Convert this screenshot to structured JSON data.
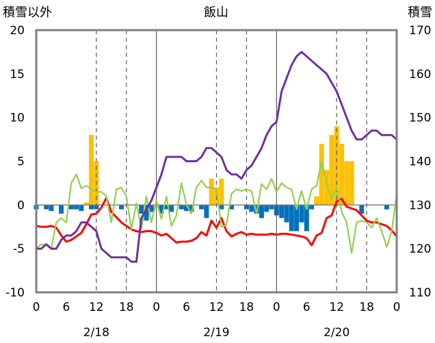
{
  "chart_data": {
    "type": "bar+line",
    "title": "飯山",
    "left_axis_label": "積雪以外",
    "right_axis_label": "積雪",
    "left_ylim": [
      -10,
      20
    ],
    "left_ticks": [
      "20",
      "15",
      "10",
      "5",
      "0",
      "-5",
      "-10"
    ],
    "right_ylim": [
      110,
      170
    ],
    "right_ticks": [
      "170",
      "160",
      "150",
      "140",
      "130",
      "120",
      "110"
    ],
    "x_tick_labels": [
      "0",
      "6",
      "12",
      "18",
      "0",
      "6",
      "12",
      "18",
      "0",
      "6",
      "12",
      "18",
      "0"
    ],
    "date_labels": [
      "2/18",
      "2/19",
      "2/20"
    ],
    "x_range_hours": [
      0,
      72
    ],
    "colors": {
      "snowfall_bar": "#ffc000",
      "snow_change_negative_bar": "#0070c0",
      "red_line": "#ff0000",
      "green_line": "#92d050",
      "snow_depth_line": "#7030a0",
      "frame": "#7f7f7f",
      "dashed_grid": "#595959",
      "zero_line": "#7f7f7f"
    },
    "series": [
      {
        "kind": "bar_positive",
        "axis": "left",
        "values": [
          [
            10,
            0.3
          ],
          [
            11,
            8
          ],
          [
            12,
            5
          ],
          [
            35,
            3
          ],
          [
            36,
            2
          ],
          [
            37,
            3
          ],
          [
            56,
            1
          ],
          [
            57,
            7
          ],
          [
            58,
            4
          ],
          [
            59,
            8
          ],
          [
            60,
            9
          ],
          [
            61,
            7
          ],
          [
            62,
            5
          ],
          [
            63,
            5
          ]
        ]
      },
      {
        "kind": "bar_negative",
        "axis": "left",
        "values": [
          [
            0,
            -0.5
          ],
          [
            2,
            -0.5
          ],
          [
            3,
            -0.7
          ],
          [
            5,
            -1
          ],
          [
            7,
            -0.5
          ],
          [
            8,
            -0.5
          ],
          [
            9,
            -0.7
          ],
          [
            11,
            -0.5
          ],
          [
            12,
            -0.5
          ],
          [
            17,
            -0.5
          ],
          [
            21,
            -1
          ],
          [
            22,
            -1.8
          ],
          [
            23,
            -0.8
          ],
          [
            25,
            -1
          ],
          [
            26,
            -0.5
          ],
          [
            27,
            -0.8
          ],
          [
            29,
            -0.5
          ],
          [
            30,
            -0.7
          ],
          [
            31,
            -0.8
          ],
          [
            33,
            -0.5
          ],
          [
            34,
            -1.5
          ],
          [
            37,
            -0.5
          ],
          [
            39,
            -0.5
          ],
          [
            42,
            -0.5
          ],
          [
            43,
            -0.8
          ],
          [
            44,
            -1
          ],
          [
            45,
            -1.5
          ],
          [
            46,
            -0.8
          ],
          [
            47,
            -0.5
          ],
          [
            48,
            -1.2
          ],
          [
            49,
            -1.5
          ],
          [
            50,
            -2
          ],
          [
            51,
            -3
          ],
          [
            52,
            -3
          ],
          [
            53,
            -2
          ],
          [
            54,
            -3
          ],
          [
            55,
            -0.5
          ],
          [
            65,
            -1
          ],
          [
            70,
            -0.5
          ]
        ]
      },
      {
        "kind": "line",
        "name": "",
        "axis": "left",
        "color_key": "red_line",
        "points": [
          [
            0,
            -2.4
          ],
          [
            1,
            -2.5
          ],
          [
            2,
            -2.5
          ],
          [
            3,
            -2.4
          ],
          [
            4,
            -2.6
          ],
          [
            5,
            -3.5
          ],
          [
            6,
            -4.2
          ],
          [
            7,
            -4
          ],
          [
            8,
            -3.6
          ],
          [
            9,
            -3.2
          ],
          [
            10,
            -2.2
          ],
          [
            11,
            -1.1
          ],
          [
            12,
            -1
          ],
          [
            13,
            -0.3
          ],
          [
            14,
            0.8
          ],
          [
            15,
            -0.8
          ],
          [
            16,
            -1.4
          ],
          [
            17,
            -2
          ],
          [
            18,
            -2.4
          ],
          [
            19,
            -2.8
          ],
          [
            20,
            -3
          ],
          [
            21,
            -3.1
          ],
          [
            22,
            -3
          ],
          [
            23,
            -3
          ],
          [
            24,
            -3.2
          ],
          [
            25,
            -3.5
          ],
          [
            26,
            -3.3
          ],
          [
            27,
            -3.8
          ],
          [
            28,
            -4.3
          ],
          [
            29,
            -4.2
          ],
          [
            30,
            -4.2
          ],
          [
            31,
            -4.1
          ],
          [
            32,
            -3.8
          ],
          [
            33,
            -3.1
          ],
          [
            34,
            -3.5
          ],
          [
            35,
            -1.8
          ],
          [
            36,
            -2.6
          ],
          [
            37,
            -1.5
          ],
          [
            38,
            -3
          ],
          [
            39,
            -3.6
          ],
          [
            40,
            -3.3
          ],
          [
            41,
            -3.1
          ],
          [
            42,
            -3.4
          ],
          [
            43,
            -3.3
          ],
          [
            44,
            -3.4
          ],
          [
            45,
            -3.4
          ],
          [
            46,
            -3.4
          ],
          [
            47,
            -3.3
          ],
          [
            48,
            -3.4
          ],
          [
            49,
            -3.3
          ],
          [
            50,
            -3.3
          ],
          [
            51,
            -3.4
          ],
          [
            52,
            -3.5
          ],
          [
            53,
            -3.6
          ],
          [
            54,
            -3.8
          ],
          [
            55,
            -4.6
          ],
          [
            56,
            -3.5
          ],
          [
            57,
            -3.2
          ],
          [
            58,
            -1.5
          ],
          [
            59,
            -1.2
          ],
          [
            60,
            0.4
          ],
          [
            61,
            0.7
          ],
          [
            62,
            -0.2
          ],
          [
            63,
            -0.4
          ],
          [
            64,
            -0.6
          ],
          [
            65,
            -1.2
          ],
          [
            66,
            -1.8
          ],
          [
            67,
            -2
          ],
          [
            68,
            -2
          ],
          [
            69,
            -2.2
          ],
          [
            70,
            -2.4
          ],
          [
            71,
            -2.9
          ],
          [
            72,
            -3.6
          ]
        ]
      },
      {
        "kind": "line",
        "name": "",
        "axis": "left",
        "color_key": "green_line",
        "points": [
          [
            0,
            -5
          ],
          [
            1,
            -4.5
          ],
          [
            2,
            -4.6
          ],
          [
            3,
            -5
          ],
          [
            4,
            -2
          ],
          [
            5,
            -1.5
          ],
          [
            6,
            -2
          ],
          [
            7,
            2.5
          ],
          [
            8,
            3.5
          ],
          [
            9,
            1.9
          ],
          [
            10,
            2.2
          ],
          [
            11,
            1.8
          ],
          [
            12,
            1.5
          ],
          [
            13,
            1.5
          ],
          [
            14,
            1
          ],
          [
            15,
            -2
          ],
          [
            16,
            1.8
          ],
          [
            17,
            2
          ],
          [
            18,
            1
          ],
          [
            19,
            -2.8
          ],
          [
            20,
            0.2
          ],
          [
            21,
            -2.8
          ],
          [
            22,
            1
          ],
          [
            23,
            -2
          ],
          [
            24,
            0.5
          ],
          [
            25,
            -1.6
          ],
          [
            26,
            1
          ],
          [
            27,
            -2.4
          ],
          [
            28,
            -1.2
          ],
          [
            29,
            2.5
          ],
          [
            30,
            0
          ],
          [
            31,
            -1
          ],
          [
            32,
            2
          ],
          [
            33,
            2.8
          ],
          [
            34,
            2
          ],
          [
            35,
            2
          ],
          [
            36,
            1.8
          ],
          [
            37,
            -2.5
          ],
          [
            38,
            -2.3
          ],
          [
            39,
            1.3
          ],
          [
            40,
            1.8
          ],
          [
            41,
            1.6
          ],
          [
            42,
            1.8
          ],
          [
            43,
            1.6
          ],
          [
            44,
            -1
          ],
          [
            45,
            2.4
          ],
          [
            46,
            1.8
          ],
          [
            47,
            3
          ],
          [
            48,
            1.5
          ],
          [
            49,
            2.5
          ],
          [
            50,
            2
          ],
          [
            51,
            1.8
          ],
          [
            52,
            -0.5
          ],
          [
            53,
            1.6
          ],
          [
            54,
            -0.5
          ],
          [
            55,
            1.8
          ],
          [
            56,
            2.2
          ],
          [
            57,
            5
          ],
          [
            58,
            2.5
          ],
          [
            59,
            0.6
          ],
          [
            60,
            2
          ],
          [
            61,
            -0.8
          ],
          [
            62,
            -2
          ],
          [
            63,
            -5.5
          ],
          [
            64,
            -2
          ],
          [
            65,
            -1.8
          ],
          [
            66,
            -2
          ],
          [
            67,
            -2.6
          ],
          [
            68,
            -1.5
          ],
          [
            69,
            -3
          ],
          [
            70,
            -4.8
          ],
          [
            71,
            -3
          ],
          [
            72,
            1.2
          ]
        ]
      },
      {
        "kind": "line",
        "name": "",
        "axis": "right",
        "color_key": "snow_depth_line",
        "points": [
          [
            0,
            120
          ],
          [
            1,
            120
          ],
          [
            2,
            121
          ],
          [
            3,
            120
          ],
          [
            4,
            120
          ],
          [
            5,
            122
          ],
          [
            6,
            123
          ],
          [
            7,
            123
          ],
          [
            8,
            124
          ],
          [
            9,
            126
          ],
          [
            10,
            126
          ],
          [
            11,
            125
          ],
          [
            12,
            124
          ],
          [
            13,
            120
          ],
          [
            14,
            119
          ],
          [
            15,
            118
          ],
          [
            16,
            118
          ],
          [
            17,
            118
          ],
          [
            18,
            118
          ],
          [
            19,
            117
          ],
          [
            20,
            117
          ],
          [
            21,
            127
          ],
          [
            22,
            129
          ],
          [
            23,
            131
          ],
          [
            24,
            134
          ],
          [
            25,
            137
          ],
          [
            26,
            141
          ],
          [
            27,
            141
          ],
          [
            28,
            141
          ],
          [
            29,
            141
          ],
          [
            30,
            140
          ],
          [
            31,
            140
          ],
          [
            32,
            140
          ],
          [
            33,
            141
          ],
          [
            34,
            143
          ],
          [
            35,
            143
          ],
          [
            36,
            142
          ],
          [
            37,
            141
          ],
          [
            38,
            138
          ],
          [
            39,
            137
          ],
          [
            40,
            137
          ],
          [
            41,
            136
          ],
          [
            42,
            138
          ],
          [
            43,
            139
          ],
          [
            44,
            141
          ],
          [
            45,
            143
          ],
          [
            46,
            146
          ],
          [
            47,
            148
          ],
          [
            48,
            149
          ],
          [
            49,
            156
          ],
          [
            50,
            159
          ],
          [
            51,
            162
          ],
          [
            52,
            164
          ],
          [
            53,
            165
          ],
          [
            54,
            164
          ],
          [
            55,
            163
          ],
          [
            56,
            162
          ],
          [
            57,
            161
          ],
          [
            58,
            160
          ],
          [
            59,
            158
          ],
          [
            60,
            156
          ],
          [
            61,
            153
          ],
          [
            62,
            150
          ],
          [
            63,
            147
          ],
          [
            64,
            145
          ],
          [
            65,
            145
          ],
          [
            66,
            146
          ],
          [
            67,
            147
          ],
          [
            68,
            147
          ],
          [
            69,
            146
          ],
          [
            70,
            146
          ],
          [
            71,
            146
          ],
          [
            72,
            145
          ]
        ]
      }
    ]
  }
}
